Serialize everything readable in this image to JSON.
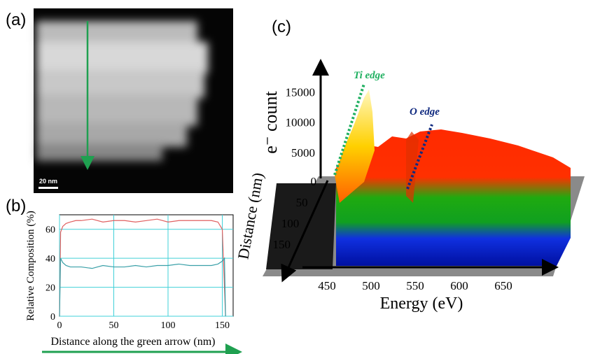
{
  "panel_a": {
    "label": "(a)",
    "scale_bar": "20 nm"
  },
  "panel_b": {
    "label": "(b)"
  },
  "chart_data": {
    "type": "line",
    "xlabel": "Distance along the green arrow (nm)",
    "ylabel": "Relative Composition (%)",
    "x": [
      0,
      1,
      3,
      6,
      10,
      15,
      20,
      30,
      40,
      50,
      60,
      70,
      80,
      90,
      100,
      110,
      120,
      130,
      140,
      146,
      150,
      152,
      153
    ],
    "series": [
      {
        "color": "#e06060",
        "values": [
          0,
          58,
          62,
          64,
          65,
          66,
          66,
          67,
          65,
          66,
          66,
          65,
          66,
          67,
          65,
          66,
          66,
          66,
          66,
          65,
          60,
          20,
          0
        ]
      },
      {
        "color": "#3aa0a8",
        "values": [
          0,
          40,
          37,
          35,
          34,
          34,
          34,
          33,
          35,
          34,
          34,
          35,
          34,
          35,
          35,
          36,
          35,
          35,
          35,
          36,
          38,
          40,
          0
        ]
      }
    ],
    "xlim": [
      0,
      160
    ],
    "ylim": [
      0,
      70
    ],
    "xticks": [
      0,
      50,
      100,
      150
    ],
    "yticks": [
      0,
      20,
      40,
      60
    ],
    "grid": true
  },
  "panel_c": {
    "label": "(c)",
    "y_label": "e⁻ count",
    "x_label": "Energy (eV)",
    "z_label": "Distance (nm)",
    "yticks": [
      5000,
      10000,
      15000
    ],
    "xticks": [
      450,
      500,
      550,
      600,
      650
    ],
    "zticks": [
      0,
      50,
      100,
      150
    ],
    "annotations": [
      "Ti edge",
      "O edge"
    ]
  }
}
